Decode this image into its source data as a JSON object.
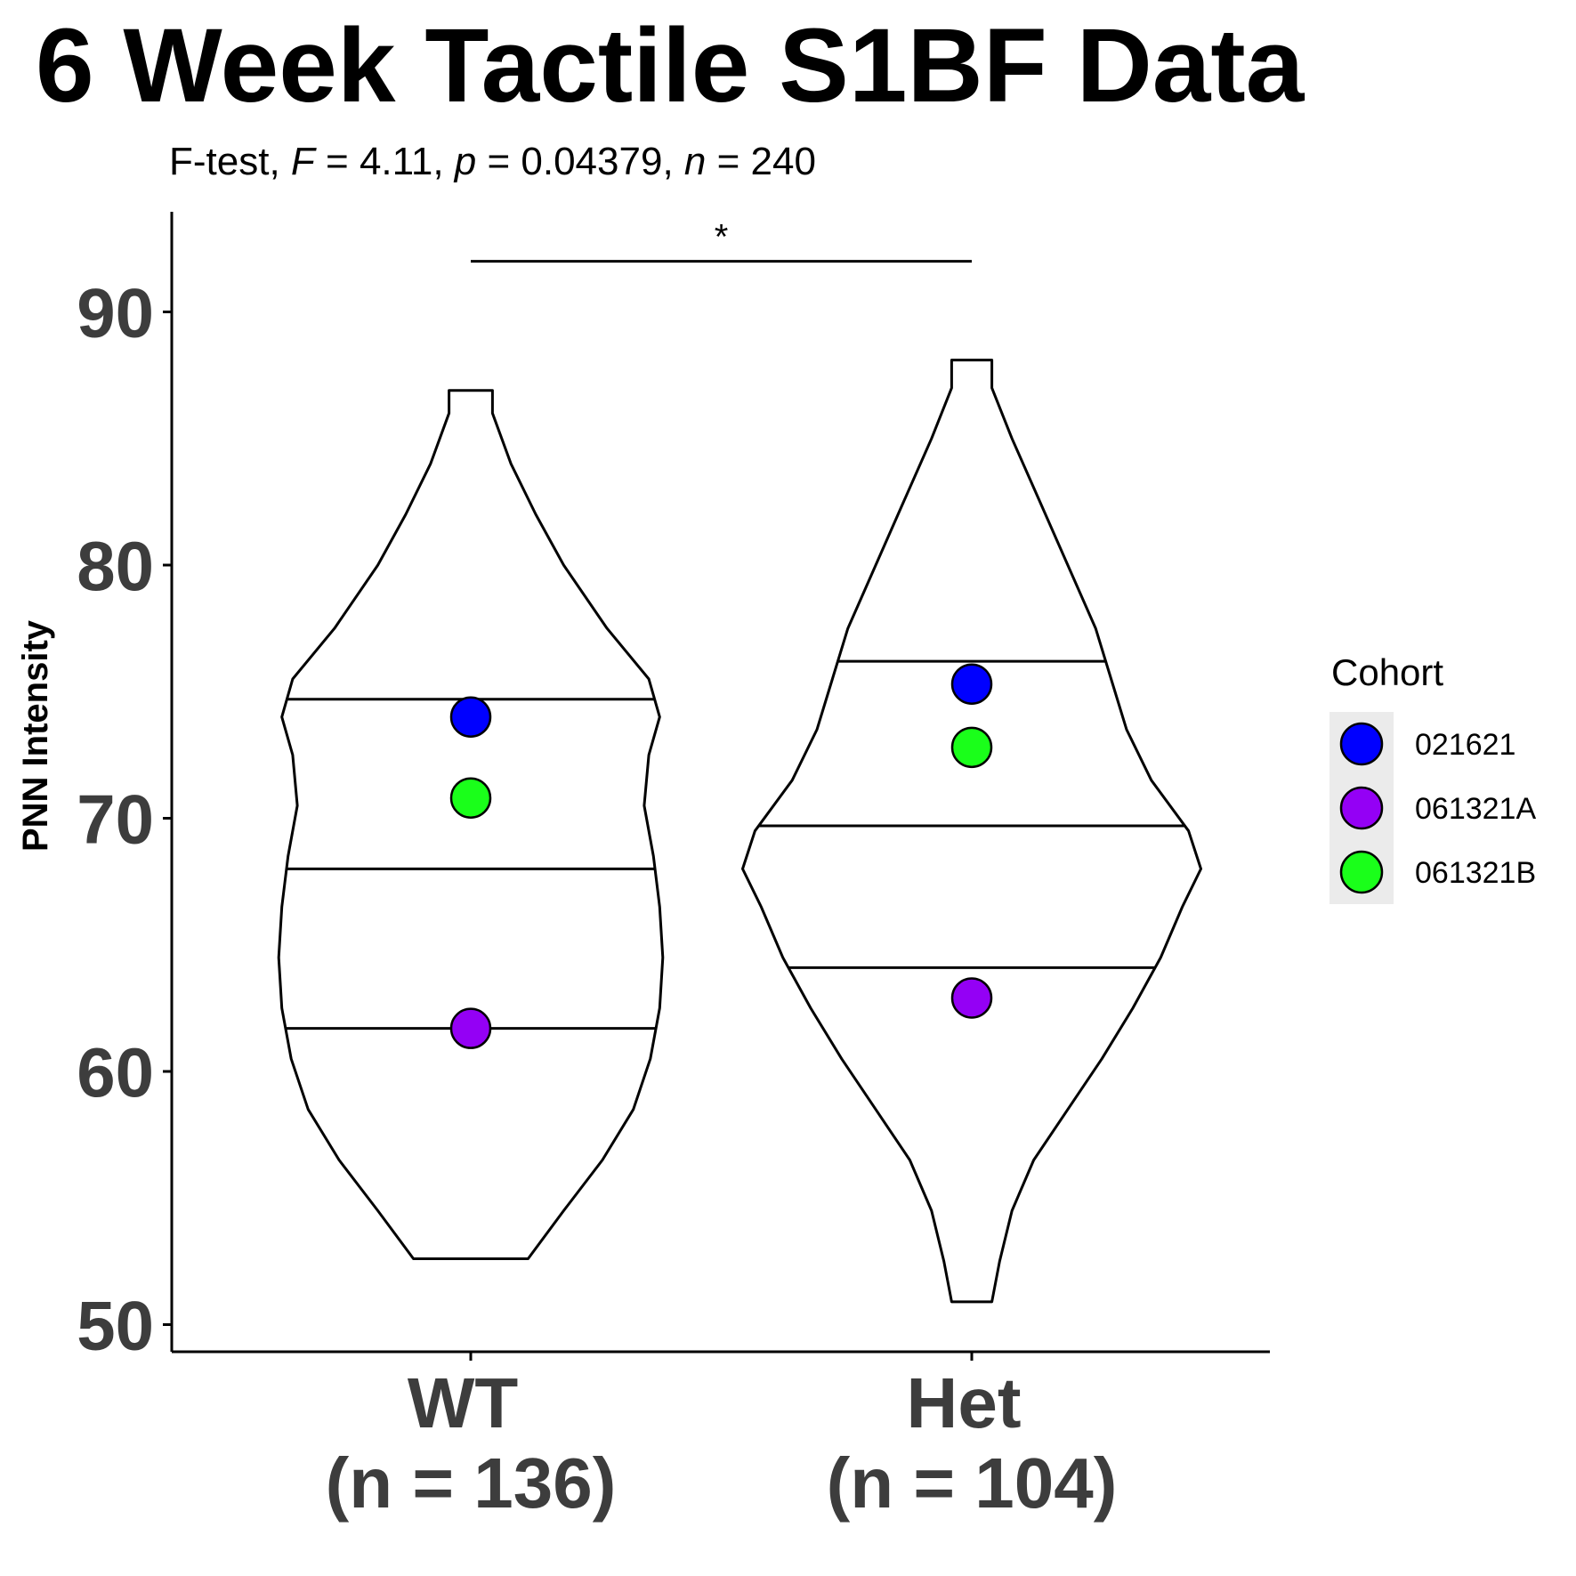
{
  "chart_data": {
    "type": "violin",
    "title": "6 Week Tactile S1BF Data",
    "subtitle": {
      "prefix": "F-test, ",
      "f_sym": "F",
      "f_val": " = 4.11, ",
      "p_sym": "p",
      "p_val": " = 0.04379, ",
      "n_sym": "n",
      "n_val": " = 240"
    },
    "ylabel": "PNN Intensity",
    "xlabel": "",
    "ylim": [
      49,
      94
    ],
    "yticks": [
      50,
      60,
      70,
      80,
      90
    ],
    "categories": [
      {
        "name": "WT",
        "n_label": "(n = 136)"
      },
      {
        "name": "Het",
        "n_label": "(n = 104)"
      }
    ],
    "violins": [
      {
        "category": "WT",
        "min": 52.6,
        "max": 86.9,
        "quantiles": {
          "q25": 61.7,
          "median": 68.0,
          "q75": 74.7
        },
        "density": [
          [
            52.6,
            3.7
          ],
          [
            54.5,
            6.0
          ],
          [
            56.5,
            8.5
          ],
          [
            58.5,
            10.5
          ],
          [
            60.5,
            11.6
          ],
          [
            62.5,
            12.2
          ],
          [
            64.5,
            12.4
          ],
          [
            66.5,
            12.2
          ],
          [
            68.5,
            11.8
          ],
          [
            70.5,
            11.2
          ],
          [
            72.5,
            11.5
          ],
          [
            74.0,
            12.2
          ],
          [
            75.5,
            11.5
          ],
          [
            77.5,
            8.8
          ],
          [
            80.0,
            6.0
          ],
          [
            82.0,
            4.2
          ],
          [
            84.0,
            2.6
          ],
          [
            86.0,
            1.4
          ],
          [
            86.9,
            1.4
          ]
        ]
      },
      {
        "category": "Het",
        "min": 50.9,
        "max": 88.1,
        "quantiles": {
          "q25": 64.1,
          "median": 69.7,
          "q75": 76.2
        },
        "density": [
          [
            50.9,
            1.3
          ],
          [
            52.5,
            1.8
          ],
          [
            54.5,
            2.6
          ],
          [
            56.5,
            4.0
          ],
          [
            58.5,
            6.2
          ],
          [
            60.5,
            8.4
          ],
          [
            62.5,
            10.4
          ],
          [
            64.5,
            12.2
          ],
          [
            66.5,
            13.6
          ],
          [
            68.0,
            14.8
          ],
          [
            69.5,
            14.0
          ],
          [
            71.5,
            11.6
          ],
          [
            73.5,
            10.0
          ],
          [
            75.5,
            9.0
          ],
          [
            77.5,
            8.0
          ],
          [
            80.0,
            6.2
          ],
          [
            82.5,
            4.4
          ],
          [
            85.0,
            2.6
          ],
          [
            87.0,
            1.3
          ],
          [
            88.1,
            1.3
          ]
        ]
      }
    ],
    "points": [
      {
        "category": "WT",
        "cohort": "021621",
        "value": 74.0
      },
      {
        "category": "WT",
        "cohort": "061321B",
        "value": 70.8
      },
      {
        "category": "WT",
        "cohort": "061321A",
        "value": 61.7
      },
      {
        "category": "Het",
        "cohort": "021621",
        "value": 75.3
      },
      {
        "category": "Het",
        "cohort": "061321B",
        "value": 72.8
      },
      {
        "category": "Het",
        "cohort": "061321A",
        "value": 62.9
      }
    ],
    "significance": {
      "from": "WT",
      "to": "Het",
      "value": 92.0,
      "label": "*"
    },
    "legend": {
      "title": "Cohort",
      "position": "right",
      "entries": [
        {
          "label": "021621",
          "color": "#0000ff"
        },
        {
          "label": "061321A",
          "color": "#9400f5"
        },
        {
          "label": "061321B",
          "color": "#1aff1a"
        }
      ]
    },
    "grid": false
  }
}
